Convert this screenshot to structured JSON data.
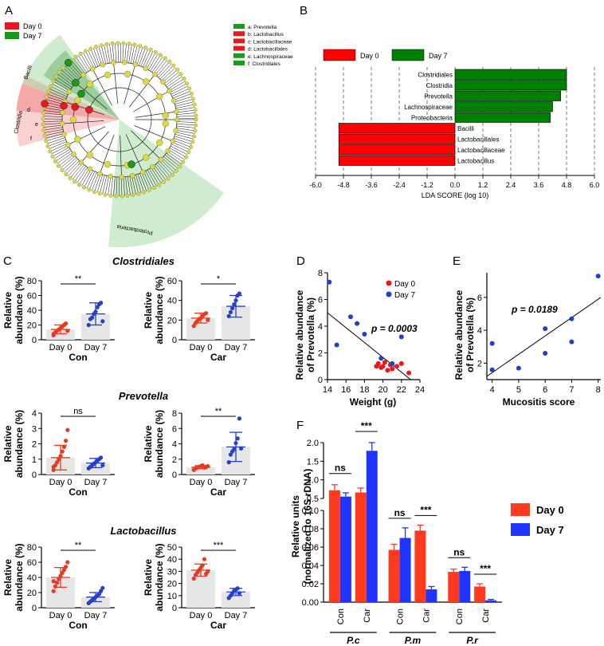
{
  "panels": {
    "A": {
      "letter": "A",
      "legend": [
        {
          "label": "Day 0",
          "color": "#e41a1c"
        },
        {
          "label": "Day 7",
          "color": "#1a9a1a"
        }
      ],
      "key": [
        {
          "text": "a: Prevotella",
          "color": "#1a9a1a"
        },
        {
          "text": "b: Lactobacillus",
          "color": "#e41a1c"
        },
        {
          "text": "c: Lactobacillaceae",
          "color": "#e41a1c"
        },
        {
          "text": "d: Lactobacillales",
          "color": "#e41a1c"
        },
        {
          "text": "e: Lachnospiraceae",
          "color": "#1a9a1a"
        },
        {
          "text": "f: Clostridiales",
          "color": "#1a9a1a"
        }
      ],
      "sector_labels": {
        "bacilli": "Bacilli",
        "clostridia": "Clostridia",
        "proteobacteria": "Proteobacteria"
      },
      "node_letters": {
        "d": "d",
        "e": "e",
        "f": "f"
      }
    },
    "B": {
      "letter": "B",
      "legend": [
        {
          "label": "Day 0",
          "color": "#ff0000"
        },
        {
          "label": "Day 7",
          "color": "#008000"
        }
      ],
      "xlabel": "LDA SCORE  (log 10)",
      "ticks": [
        "-6.0",
        "-4.8",
        "-3.6",
        "-2.4",
        "-1.2",
        "0.0",
        "1.2",
        "2.4",
        "3.6",
        "4.8",
        "6.0"
      ],
      "bars": [
        {
          "name": "Clostridiales",
          "value": 4.8,
          "group": "Day 7"
        },
        {
          "name": "Clostridia",
          "value": 4.8,
          "group": "Day 7"
        },
        {
          "name": "Prevotella",
          "value": 4.55,
          "group": "Day 7"
        },
        {
          "name": "Lachnospiraceae",
          "value": 4.2,
          "group": "Day 7"
        },
        {
          "name": "Proteobacteria",
          "value": 4.1,
          "group": "Day 7"
        },
        {
          "name": "Bacilli",
          "value": -5.0,
          "group": "Day 0"
        },
        {
          "name": "Lactobacillales",
          "value": -5.0,
          "group": "Day 0"
        },
        {
          "name": "Lactobacillaceae",
          "value": -5.0,
          "group": "Day 0"
        },
        {
          "name": "Lactobacillus",
          "value": -5.0,
          "group": "Day 0"
        }
      ]
    },
    "C": {
      "letter": "C",
      "ylabel": "Relative abundance (%)",
      "ylabel_line1": "Relative",
      "ylabel_line2": "abundance (%)",
      "rows": [
        {
          "title": "Clostridiales",
          "plots": [
            {
              "group": "Con",
              "ymax": 80,
              "ticks": [
                "0",
                "20",
                "40",
                "60",
                "80"
              ],
              "means": [
                14,
                35
              ],
              "sds": [
                6,
                15
              ],
              "sig": "**",
              "day0": [
                8,
                10,
                12,
                14,
                16,
                18,
                20,
                22,
                12,
                6
              ],
              "day7": [
                20,
                28,
                30,
                35,
                38,
                44,
                48,
                50,
                25
              ]
            },
            {
              "group": "Car",
              "ymax": 60,
              "ticks": [
                "0",
                "20",
                "40",
                "60"
              ],
              "means": [
                22,
                34
              ],
              "sds": [
                5,
                11
              ],
              "sig": "*",
              "day0": [
                14,
                17,
                19,
                21,
                22,
                24,
                26,
                27,
                20
              ],
              "day7": [
                24,
                28,
                32,
                36,
                40,
                45,
                47
              ]
            }
          ]
        },
        {
          "title": "Prevotella",
          "plots": [
            {
              "group": "Con",
              "ymax": 4,
              "ticks": [
                "0",
                "1",
                "2",
                "3",
                "4"
              ],
              "means": [
                1.1,
                0.75
              ],
              "sds": [
                0.8,
                0.3
              ],
              "sig": "ns",
              "day0": [
                0.3,
                0.6,
                0.8,
                1.0,
                1.2,
                1.5,
                1.8,
                2.2,
                2.9,
                0.5
              ],
              "day7": [
                0.4,
                0.5,
                0.6,
                0.7,
                0.8,
                0.9,
                1.0,
                1.1,
                0.6
              ]
            },
            {
              "group": "Car",
              "ymax": 8,
              "ticks": [
                "0",
                "2",
                "4",
                "6",
                "8"
              ],
              "means": [
                0.95,
                3.6
              ],
              "sds": [
                0.2,
                1.9
              ],
              "sig": "**",
              "day0": [
                0.6,
                0.8,
                0.9,
                1.0,
                1.1,
                1.2,
                0.9,
                1.0,
                1.1
              ],
              "day7": [
                1.6,
                2.6,
                3.0,
                3.3,
                4.1,
                4.7,
                7.3,
                3.4
              ]
            }
          ]
        },
        {
          "title": "Lactobacillus",
          "plots": [
            {
              "group": "Con",
              "ymax": 80,
              "ticks": [
                "0",
                "20",
                "40",
                "60",
                "80"
              ],
              "means": [
                40,
                14
              ],
              "sds": [
                13,
                6
              ],
              "sig": "**",
              "day0": [
                22,
                28,
                33,
                38,
                42,
                46,
                50,
                54,
                60,
                35
              ],
              "day7": [
                6,
                8,
                10,
                12,
                14,
                16,
                18,
                22,
                26
              ]
            },
            {
              "group": "Car",
              "ymax": 50,
              "ticks": [
                "0",
                "10",
                "20",
                "30",
                "40",
                "50"
              ],
              "means": [
                31,
                13
              ],
              "sds": [
                5,
                3
              ],
              "sig": "***",
              "day0": [
                24,
                27,
                29,
                31,
                33,
                35,
                40,
                28,
                30
              ],
              "day7": [
                8,
                10,
                12,
                14,
                15,
                16,
                12
              ]
            }
          ]
        }
      ],
      "x_categories": [
        "Day 0",
        "Day 7"
      ],
      "colors": {
        "day0": "#e63a22",
        "day7": "#2640c9"
      }
    },
    "D": {
      "letter": "D",
      "ylabel_line1": "Relative abundance",
      "ylabel_line2": "of Prevotella (%)",
      "xlabel": "Weight (g)",
      "p_text": "p = 0.0003",
      "legend": [
        {
          "label": "Day 0",
          "color": "#e41a1c"
        },
        {
          "label": "Day 7",
          "color": "#1f3fd1"
        }
      ],
      "xticks": [
        "14",
        "16",
        "18",
        "20",
        "22",
        "24"
      ],
      "yticks": [
        "0",
        "2",
        "4",
        "6",
        "8"
      ],
      "xlim": [
        14,
        24
      ],
      "ylim": [
        0,
        8
      ],
      "day0": [
        [
          19.5,
          1.2
        ],
        [
          19.8,
          0.9
        ],
        [
          20.0,
          1.0
        ],
        [
          20.2,
          1.3
        ],
        [
          20.5,
          0.7
        ],
        [
          20.8,
          1.1
        ],
        [
          21.0,
          0.8
        ],
        [
          21.5,
          1.0
        ],
        [
          22.0,
          1.2
        ],
        [
          22.8,
          0.5
        ],
        [
          19.3,
          1.0
        ]
      ],
      "day7": [
        [
          14.2,
          7.3
        ],
        [
          15.0,
          2.6
        ],
        [
          16.5,
          4.7
        ],
        [
          17.2,
          4.2
        ],
        [
          18.0,
          3.4
        ],
        [
          19.8,
          1.6
        ],
        [
          21.0,
          1.2
        ],
        [
          22.0,
          3.2
        ]
      ],
      "fit": [
        [
          14,
          5.0
        ],
        [
          23,
          0.0
        ]
      ]
    },
    "E": {
      "letter": "E",
      "ylabel_line1": "Relative abundance",
      "ylabel_line2": "of Prevotella (%)",
      "xlabel": "Mucositis score",
      "p_text": "p = 0.0189",
      "xticks": [
        "4",
        "5",
        "6",
        "7",
        "8"
      ],
      "yticks": [
        "2",
        "4",
        "6"
      ],
      "xlim": [
        3.8,
        8.1
      ],
      "ylim": [
        1,
        7.5
      ],
      "points": [
        [
          4,
          1.6
        ],
        [
          4,
          3.2
        ],
        [
          5,
          1.7
        ],
        [
          6,
          2.6
        ],
        [
          6,
          4.1
        ],
        [
          7,
          3.3
        ],
        [
          7,
          4.7
        ],
        [
          8,
          7.3
        ]
      ],
      "fit": [
        [
          3.8,
          1.2
        ],
        [
          8.1,
          6.0
        ]
      ]
    },
    "F": {
      "letter": "F",
      "ylabel_line1": "Relative units",
      "ylabel_line2": "(normalized to 16S rDNA)",
      "legend": [
        {
          "label": "Day 0",
          "color": "#ff3b1f"
        },
        {
          "label": "Day 7",
          "color": "#1f35ff"
        }
      ],
      "upper_ticks": [
        "0.5",
        "1.0",
        "1.5",
        "2.0"
      ],
      "lower_ticks": [
        "0.00",
        "0.02",
        "0.04",
        "0.06",
        "0.08",
        "0.10"
      ],
      "groups": [
        {
          "gene": "P.c",
          "conditions": [
            {
              "cond": "Con",
              "day0": 0.72,
              "day0_err": 0.15,
              "day7": 0.55,
              "day7_err": 0.1,
              "sig": "ns"
            },
            {
              "cond": "Car",
              "day0": 0.66,
              "day0_err": 0.12,
              "day7": 1.78,
              "day7_err": 0.22,
              "sig": "***"
            }
          ]
        },
        {
          "gene": "P.m",
          "conditions": [
            {
              "cond": "Con",
              "day0": 0.057,
              "day0_err": 0.006,
              "day7": 0.07,
              "day7_err": 0.011,
              "sig": "ns"
            },
            {
              "cond": "Car",
              "day0": 0.078,
              "day0_err": 0.006,
              "day7": 0.014,
              "day7_err": 0.003,
              "sig": "***"
            }
          ]
        },
        {
          "gene": "P.r",
          "conditions": [
            {
              "cond": "Con",
              "day0": 0.033,
              "day0_err": 0.003,
              "day7": 0.034,
              "day7_err": 0.004,
              "sig": "ns"
            },
            {
              "cond": "Car",
              "day0": 0.017,
              "day0_err": 0.003,
              "day7": 0.002,
              "day7_err": 0.001,
              "sig": "***"
            }
          ]
        }
      ]
    }
  },
  "chart_data": [
    {
      "panel": "B",
      "type": "bar",
      "title": "",
      "xlabel": "LDA SCORE  (log 10)",
      "categories": [
        "Clostridiales",
        "Clostridia",
        "Prevotella",
        "Lachnospiraceae",
        "Proteobacteria",
        "Bacilli",
        "Lactobacillales",
        "Lactobacillaceae",
        "Lactobacillus"
      ],
      "values": [
        4.8,
        4.8,
        4.55,
        4.2,
        4.1,
        -5.0,
        -5.0,
        -5.0,
        -5.0
      ],
      "xlim": [
        -6,
        6
      ]
    },
    {
      "panel": "D",
      "type": "scatter",
      "xlabel": "Weight (g)",
      "ylabel": "Relative abundance of Prevotella (%)",
      "xlim": [
        14,
        24
      ],
      "ylim": [
        0,
        8
      ]
    },
    {
      "panel": "E",
      "type": "scatter",
      "xlabel": "Mucositis score",
      "ylabel": "Relative abundance of Prevotella (%)",
      "xlim": [
        4,
        8
      ],
      "ylim": [
        1,
        7.5
      ]
    },
    {
      "panel": "F",
      "type": "bar",
      "categories": [
        "P.c Con",
        "P.c Car",
        "P.m Con",
        "P.m Car",
        "P.r Con",
        "P.r Car"
      ],
      "series": [
        {
          "name": "Day 0",
          "values": [
            0.72,
            0.66,
            0.057,
            0.078,
            0.033,
            0.017
          ]
        },
        {
          "name": "Day 7",
          "values": [
            0.55,
            1.78,
            0.07,
            0.014,
            0.034,
            0.002
          ]
        }
      ]
    }
  ]
}
